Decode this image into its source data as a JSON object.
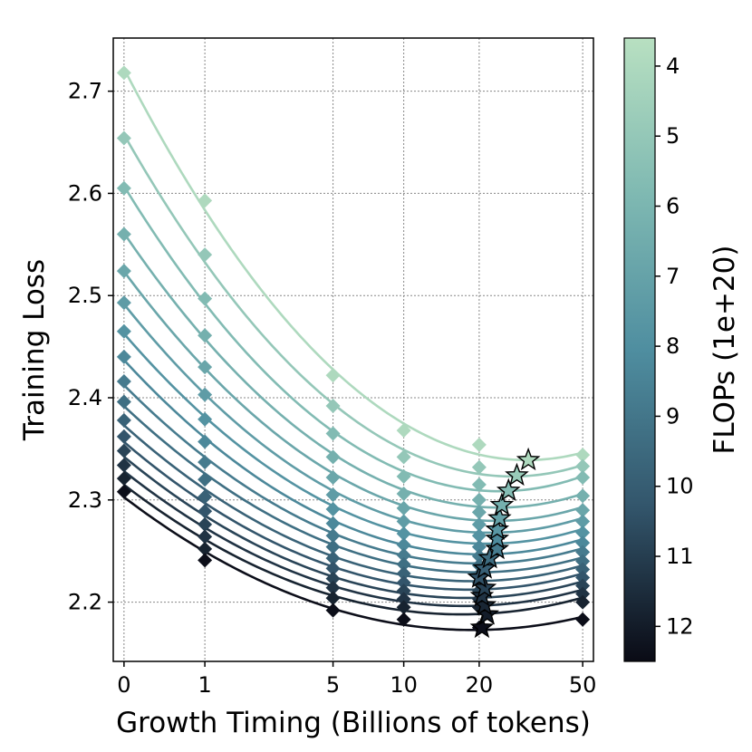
{
  "chart_data": {
    "type": "line",
    "xlabel": "Growth Timing (Billions of tokens)",
    "ylabel": "Training Loss",
    "x_ticks": [
      {
        "value": 0,
        "label": "0"
      },
      {
        "value": 1,
        "label": "1"
      },
      {
        "value": 5,
        "label": "5"
      },
      {
        "value": 10,
        "label": "10"
      },
      {
        "value": 20,
        "label": "20"
      },
      {
        "value": 50,
        "label": "50"
      }
    ],
    "y_ticks": [
      {
        "value": 2.2,
        "label": "2.2"
      },
      {
        "value": 2.3,
        "label": "2.3"
      },
      {
        "value": 2.4,
        "label": "2.4"
      },
      {
        "value": 2.5,
        "label": "2.5"
      },
      {
        "value": 2.6,
        "label": "2.6"
      },
      {
        "value": 2.7,
        "label": "2.7"
      }
    ],
    "ylim": [
      2.142,
      2.752
    ],
    "grid": true,
    "x_points": [
      0,
      1,
      5,
      10,
      20,
      50
    ],
    "series": [
      {
        "flops": 4,
        "values": [
          2.718,
          2.593,
          2.422,
          2.368,
          2.354,
          2.344
        ]
      },
      {
        "flops": 5,
        "values": [
          2.654,
          2.54,
          2.392,
          2.342,
          2.332,
          2.333
        ]
      },
      {
        "flops": 5.7,
        "values": [
          2.605,
          2.497,
          2.365,
          2.323,
          2.315,
          2.322
        ]
      },
      {
        "flops": 6.3,
        "values": [
          2.56,
          2.461,
          2.342,
          2.306,
          2.3,
          2.304
        ]
      },
      {
        "flops": 6.8,
        "values": [
          2.524,
          2.43,
          2.322,
          2.292,
          2.288,
          2.29
        ]
      },
      {
        "flops": 7.3,
        "values": [
          2.493,
          2.403,
          2.305,
          2.279,
          2.276,
          2.279
        ]
      },
      {
        "flops": 7.8,
        "values": [
          2.465,
          2.379,
          2.291,
          2.267,
          2.265,
          2.268
        ]
      },
      {
        "flops": 8.3,
        "values": [
          2.44,
          2.357,
          2.277,
          2.256,
          2.254,
          2.258
        ]
      },
      {
        "flops": 8.8,
        "values": [
          2.416,
          2.337,
          2.265,
          2.246,
          2.245,
          2.249
        ]
      },
      {
        "flops": 9.3,
        "values": [
          2.396,
          2.32,
          2.254,
          2.237,
          2.236,
          2.24
        ]
      },
      {
        "flops": 9.8,
        "values": [
          2.378,
          2.303,
          2.243,
          2.228,
          2.227,
          2.232
        ]
      },
      {
        "flops": 10.3,
        "values": [
          2.362,
          2.289,
          2.233,
          2.219,
          2.219,
          2.224
        ]
      },
      {
        "flops": 10.8,
        "values": [
          2.348,
          2.276,
          2.223,
          2.211,
          2.211,
          2.216
        ]
      },
      {
        "flops": 11.3,
        "values": [
          2.334,
          2.264,
          2.214,
          2.203,
          2.203,
          2.208
        ]
      },
      {
        "flops": 11.8,
        "values": [
          2.321,
          2.252,
          2.204,
          2.195,
          2.195,
          2.2
        ]
      },
      {
        "flops": 12.4,
        "values": [
          2.308,
          2.241,
          2.192,
          2.183,
          2.175,
          2.183
        ]
      }
    ],
    "optimum_markers": [
      {
        "flops": 4,
        "x": 31.0,
        "y": 2.339
      },
      {
        "flops": 4.8,
        "x": 28.0,
        "y": 2.324
      },
      {
        "flops": 5.6,
        "x": 26.0,
        "y": 2.309
      },
      {
        "flops": 6.3,
        "x": 24.5,
        "y": 2.295
      },
      {
        "flops": 7.0,
        "x": 24.0,
        "y": 2.282
      },
      {
        "flops": 7.6,
        "x": 23.5,
        "y": 2.271
      },
      {
        "flops": 8.2,
        "x": 23.5,
        "y": 2.262
      },
      {
        "flops": 8.8,
        "x": 23.5,
        "y": 2.252
      },
      {
        "flops": 9.4,
        "x": 22.0,
        "y": 2.243
      },
      {
        "flops": 9.9,
        "x": 21.0,
        "y": 2.233
      },
      {
        "flops": 10.4,
        "x": 20.0,
        "y": 2.224
      },
      {
        "flops": 10.9,
        "x": 21.0,
        "y": 2.214
      },
      {
        "flops": 11.3,
        "x": 20.5,
        "y": 2.206
      },
      {
        "flops": 11.7,
        "x": 21.0,
        "y": 2.197
      },
      {
        "flops": 12.0,
        "x": 21.5,
        "y": 2.188
      },
      {
        "flops": 12.4,
        "x": 20.5,
        "y": 2.175
      }
    ],
    "colorbar": {
      "label": "FLOPs (1e+20)",
      "range": [
        3.6,
        12.5
      ],
      "reversed": true,
      "colors": [
        "#b8e0c1",
        "#7fb9b2",
        "#4f8ea0",
        "#33566c",
        "#0a0b15"
      ],
      "ticks": [
        {
          "value": 4,
          "label": "4"
        },
        {
          "value": 5,
          "label": "5"
        },
        {
          "value": 6,
          "label": "6"
        },
        {
          "value": 7,
          "label": "7"
        },
        {
          "value": 8,
          "label": "8"
        },
        {
          "value": 9,
          "label": "9"
        },
        {
          "value": 10,
          "label": "10"
        },
        {
          "value": 11,
          "label": "11"
        },
        {
          "value": 12,
          "label": "12"
        }
      ]
    }
  }
}
